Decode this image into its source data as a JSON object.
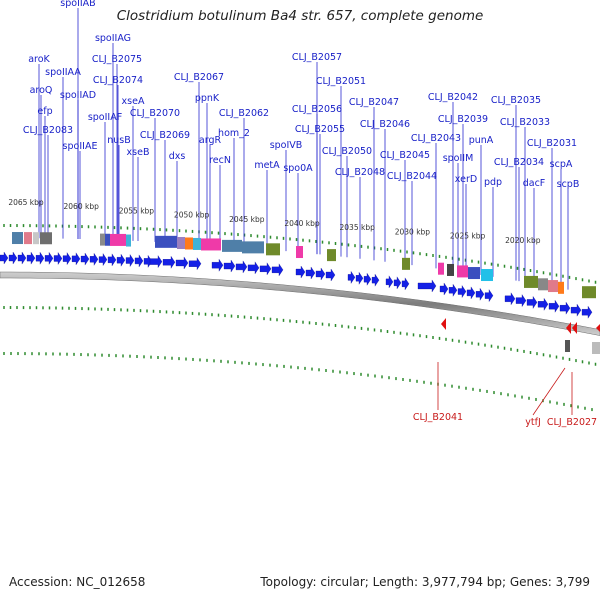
{
  "title": "Clostridium botulinum Ba4 str. 657, complete genome",
  "footer": {
    "accession": "Accession: NC_012658",
    "summary": "Topology: circular; Length: 3,977,794 bp; Genes: 3,799"
  },
  "kbp_labels": [
    "2065 kbp",
    "2060 kbp",
    "2055 kbp",
    "2050 kbp",
    "2045 kbp",
    "2040 kbp",
    "2035 kbp",
    "2030 kbp",
    "2025 kbp",
    "2020 kbp"
  ],
  "forward_genes": [
    "spoIIAB",
    "spoIIAG",
    "aroK",
    "spoIIAA",
    "CLJ_B2075",
    "aroQ",
    "spoIIAD",
    "CLJ_B2074",
    "efp",
    "CLJ_B2067",
    "xseA",
    "spoIIAF",
    "ppnK",
    "CLJ_B2083",
    "CLJ_B2070",
    "nusB",
    "CLJ_B2069",
    "spoIIAE",
    "xseB",
    "argR",
    "dxs",
    "recN",
    "CLJ_B2062",
    "hom_2",
    "metA",
    "CLJ_B2057",
    "CLJ_B2051",
    "CLJ_B2056",
    "spoIVB",
    "CLJ_B2055",
    "spo0A",
    "CLJ_B2050",
    "CLJ_B2048",
    "CLJ_B2047",
    "CLJ_B2046",
    "CLJ_B2045",
    "CLJ_B2044",
    "CLJ_B2042",
    "CLJ_B2043",
    "CLJ_B2039",
    "spoIIM",
    "punA",
    "xerD",
    "pdp",
    "CLJ_B2035",
    "CLJ_B2033",
    "CLJ_B2034",
    "CLJ_B2031",
    "dacF",
    "scpA",
    "scpB"
  ],
  "reverse_genes": [
    "CLJ_B2041",
    "ytfJ",
    "CLJ_B2027"
  ],
  "colors": {
    "forward_label": "#1a22c8",
    "reverse_label": "#c81a1a",
    "forward_arrow": "#1420e6",
    "reverse_arrow": "#e01010",
    "tick": "#2e8b2e",
    "backbone": "#888888"
  }
}
